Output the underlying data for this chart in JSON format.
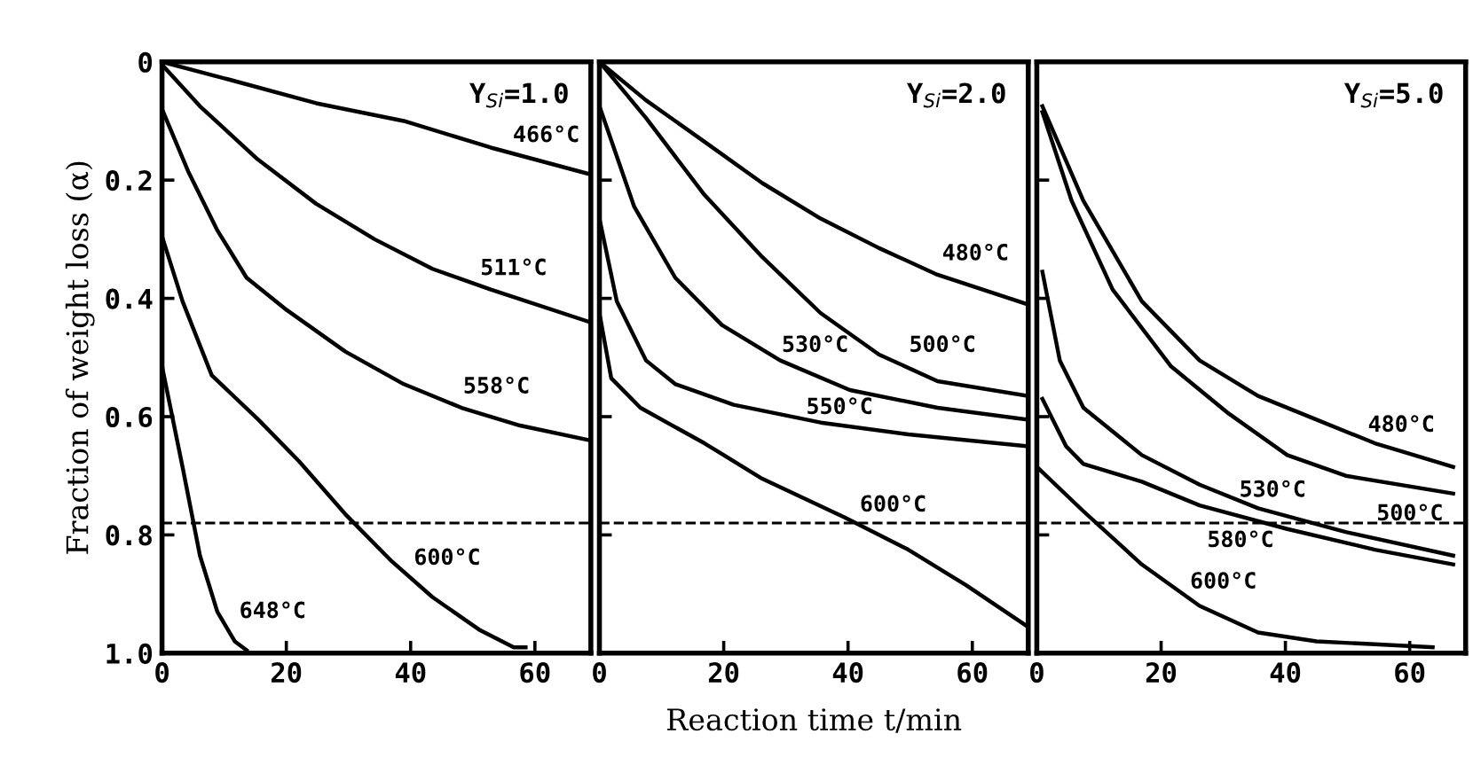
{
  "chart_data": [
    {
      "type": "line",
      "title": "Y$_{Si}$=1.0",
      "ylabel": "Fraction of weight loss (α)",
      "xlim": [
        0,
        69
      ],
      "ylim": [
        1.0,
        0
      ],
      "xticks": [
        0,
        20,
        40,
        60
      ],
      "yticks": [
        0,
        0.2,
        0.4,
        0.6,
        0.8,
        {
          "value": 1.0,
          "label": "1.0"
        }
      ],
      "grid": false,
      "legend": false,
      "marker": "none",
      "line_style": "solid",
      "series": [
        {
          "name": "466°C",
          "color": "#000000",
          "x": [
            0,
            10.8,
            24.8,
            38.9,
            52.9,
            68.8
          ],
          "values": [
            0.0,
            0.03,
            0.07,
            0.1,
            0.145,
            0.19
          ]
        },
        {
          "name": "511°C",
          "color": "#000000",
          "x": [
            0,
            6.1,
            15.4,
            24.8,
            34.2,
            43.5,
            52.9,
            68.8
          ],
          "values": [
            0.005,
            0.075,
            0.165,
            0.24,
            0.3,
            0.35,
            0.385,
            0.44
          ]
        },
        {
          "name": "558°C",
          "color": "#000000",
          "x": [
            0,
            4.2,
            8.9,
            13.6,
            20.1,
            29.5,
            38.9,
            48.2,
            57.6,
            68.8
          ],
          "values": [
            0.08,
            0.185,
            0.285,
            0.365,
            0.42,
            0.49,
            0.545,
            0.585,
            0.615,
            0.64
          ]
        },
        {
          "name": "600°C",
          "color": "#000000",
          "x": [
            0,
            3.3,
            8,
            15.5,
            22,
            29.5,
            37,
            43.5,
            51,
            56.6,
            58.5
          ],
          "values": [
            0.295,
            0.405,
            0.53,
            0.605,
            0.675,
            0.765,
            0.845,
            0.905,
            0.96,
            0.99,
            0.99
          ]
        },
        {
          "name": "648°C",
          "color": "#000000",
          "x": [
            0,
            3.3,
            6.1,
            8.9,
            11.7,
            13.6
          ],
          "values": [
            0.515,
            0.685,
            0.835,
            0.93,
            0.98,
            0.995
          ]
        }
      ],
      "ref_lines": [
        {
          "axis": "y",
          "value": 0.78,
          "color": "#000000",
          "line_style": "dashed"
        }
      ]
    },
    {
      "type": "line",
      "title": "Y$_{Si}$=2.0",
      "xlabel": "Reaction time t/min",
      "xlim": [
        0,
        69
      ],
      "ylim": [
        1.0,
        0
      ],
      "xticks": [
        0,
        20,
        40,
        60
      ],
      "yticks": [
        {
          "value": 0,
          "label": null
        },
        {
          "value": 0.2,
          "label": null
        },
        {
          "value": 0.4,
          "label": null
        },
        {
          "value": 0.6,
          "label": null
        },
        {
          "value": 0.8,
          "label": null
        },
        {
          "value": 1.0,
          "label": null
        }
      ],
      "tick_labels": "x",
      "grid": false,
      "legend": false,
      "marker": "none",
      "line_style": "solid",
      "series": [
        {
          "name": "480°C",
          "color": "#000000",
          "x": [
            0,
            7.5,
            16.9,
            26.2,
            35.6,
            45,
            54.4,
            68.9
          ],
          "values": [
            0.0,
            0.065,
            0.135,
            0.205,
            0.265,
            0.315,
            0.36,
            0.41
          ]
        },
        {
          "name": "500°C",
          "color": "#000000",
          "x": [
            0,
            7.5,
            16.9,
            26.2,
            35.6,
            45,
            54.4,
            68.9
          ],
          "values": [
            0.0,
            0.095,
            0.225,
            0.33,
            0.425,
            0.495,
            0.54,
            0.565
          ]
        },
        {
          "name": "530°C",
          "color": "#000000",
          "x": [
            0,
            5.6,
            12.2,
            19.7,
            29.1,
            40.3,
            54.4,
            68.9
          ],
          "values": [
            0.075,
            0.245,
            0.365,
            0.445,
            0.505,
            0.555,
            0.585,
            0.605
          ]
        },
        {
          "name": "550°C",
          "color": "#000000",
          "x": [
            0,
            2.8,
            7.5,
            12.2,
            21.6,
            35.6,
            49.7,
            68.9
          ],
          "values": [
            0.265,
            0.405,
            0.505,
            0.545,
            0.58,
            0.61,
            0.63,
            0.65
          ]
        },
        {
          "name": "600°C",
          "color": "#000000",
          "x": [
            0,
            1.9,
            6.6,
            16.9,
            26.2,
            39.4,
            49.7,
            59,
            68.9
          ],
          "values": [
            0.425,
            0.535,
            0.585,
            0.645,
            0.705,
            0.77,
            0.825,
            0.885,
            0.955
          ]
        }
      ],
      "ref_lines": [
        {
          "axis": "y",
          "value": 0.78,
          "color": "#000000",
          "line_style": "dashed"
        }
      ]
    },
    {
      "type": "line",
      "title": "Y$_{Si}$=5.0",
      "xlim": [
        0,
        69
      ],
      "ylim": [
        1.0,
        0
      ],
      "xticks": [
        0,
        20,
        40,
        60
      ],
      "yticks": [
        {
          "value": 0,
          "label": null
        },
        {
          "value": 0.2,
          "label": null
        },
        {
          "value": 0.4,
          "label": null
        },
        {
          "value": 0.6,
          "label": null
        },
        {
          "value": 0.8,
          "label": null
        },
        {
          "value": 1.0,
          "label": null
        }
      ],
      "tick_labels": "x",
      "grid": false,
      "legend": false,
      "marker": "none",
      "line_style": "solid",
      "series": [
        {
          "name": "480°C",
          "color": "#000000",
          "x": [
            0.9,
            7.5,
            16.9,
            26.2,
            35.6,
            45,
            54.4,
            67
          ],
          "values": [
            0.075,
            0.235,
            0.405,
            0.505,
            0.565,
            0.605,
            0.645,
            0.685
          ]
        },
        {
          "name": "500°C",
          "color": "#000000",
          "x": [
            0.9,
            5.6,
            12.2,
            21.6,
            30.9,
            40.3,
            49.7,
            67
          ],
          "values": [
            0.085,
            0.235,
            0.385,
            0.515,
            0.595,
            0.665,
            0.7,
            0.73
          ]
        },
        {
          "name": "530°C",
          "color": "#000000",
          "x": [
            0.9,
            3.7,
            7.5,
            16.9,
            26.2,
            35.6,
            49.7,
            67
          ],
          "values": [
            0.355,
            0.505,
            0.585,
            0.665,
            0.715,
            0.755,
            0.795,
            0.835
          ]
        },
        {
          "name": "580°C",
          "color": "#000000",
          "x": [
            0.9,
            4.7,
            7.5,
            16.9,
            26.2,
            40.3,
            54.4,
            67
          ],
          "values": [
            0.57,
            0.65,
            0.68,
            0.71,
            0.75,
            0.79,
            0.825,
            0.85
          ]
        },
        {
          "name": "600°C",
          "color": "#000000",
          "x": [
            0,
            7.5,
            16.9,
            26.2,
            35.6,
            45,
            54.4,
            63.7
          ],
          "values": [
            0.685,
            0.76,
            0.85,
            0.92,
            0.965,
            0.98,
            0.985,
            0.99
          ]
        }
      ],
      "ref_lines": [
        {
          "axis": "y",
          "value": 0.78,
          "color": "#000000",
          "line_style": "dashed"
        }
      ]
    }
  ]
}
